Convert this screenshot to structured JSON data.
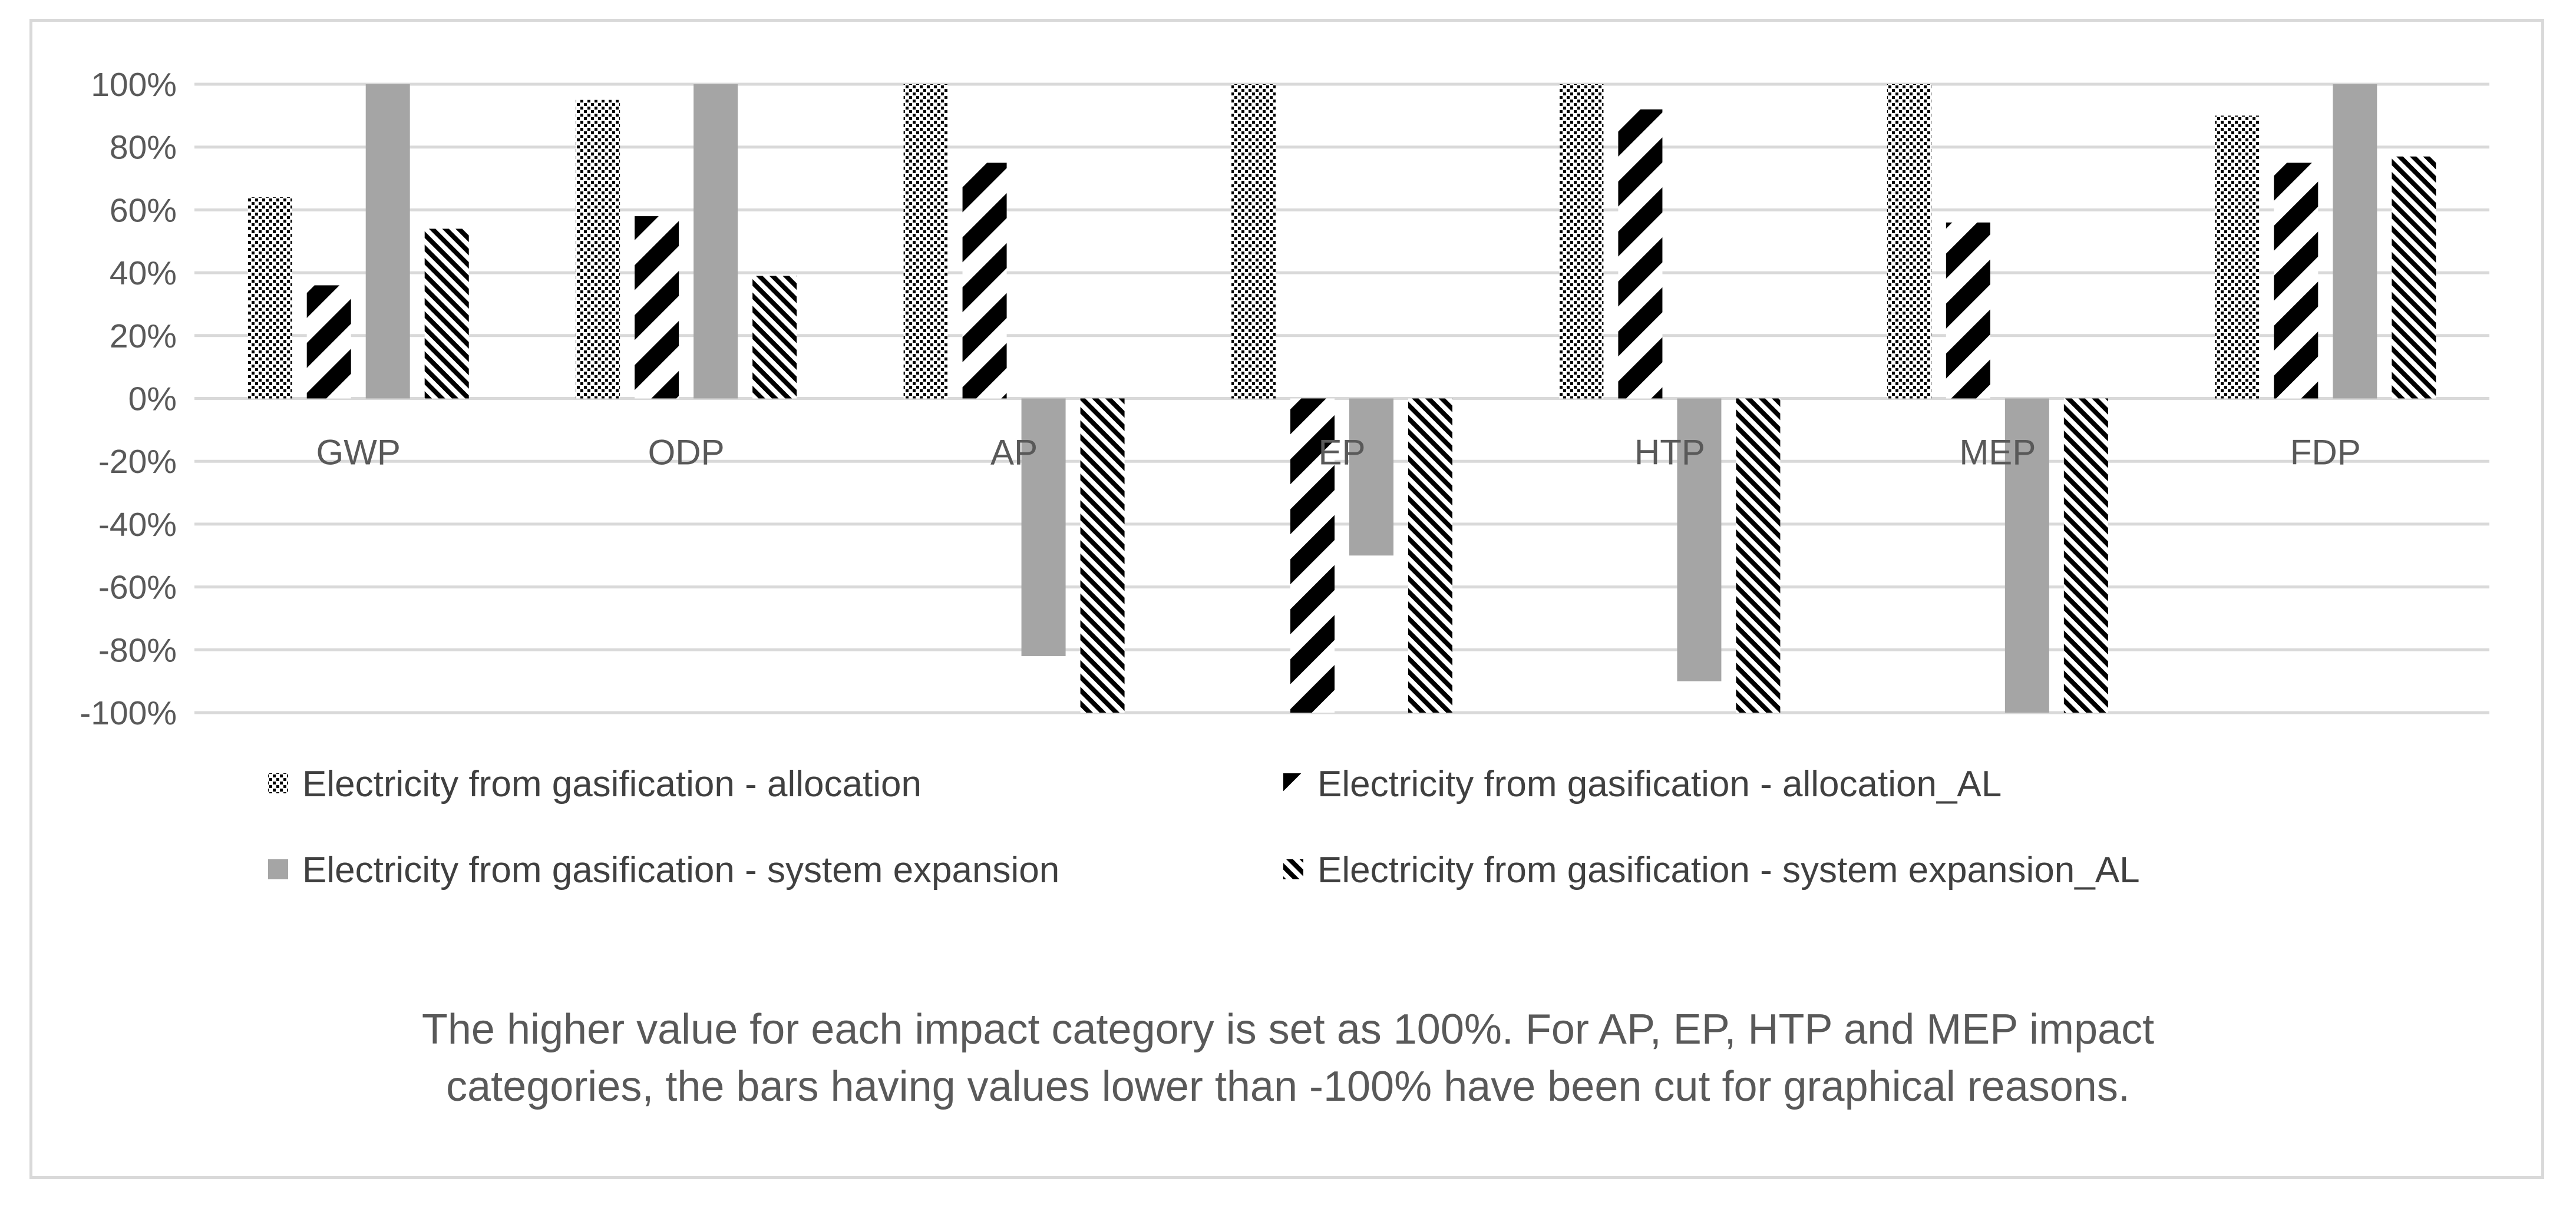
{
  "chart_data": {
    "type": "bar",
    "title": "",
    "xlabel": "",
    "ylabel": "",
    "ylim": [
      -100,
      100
    ],
    "yticks": [
      "100%",
      "80%",
      "60%",
      "40%",
      "20%",
      "0%",
      "-20%",
      "-40%",
      "-60%",
      "-80%",
      "-100%"
    ],
    "categories": [
      "GWP",
      "ODP",
      "AP",
      "EP",
      "HTP",
      "MEP",
      "FDP"
    ],
    "series": [
      {
        "name": "Electricity from gasification - allocation",
        "pattern": "dots",
        "values": [
          64,
          95,
          100,
          100,
          100,
          100,
          90
        ]
      },
      {
        "name": "Electricity from gasification - allocation_AL",
        "pattern": "wide-diagonal",
        "values": [
          36,
          58,
          75,
          -100,
          92,
          56,
          75
        ]
      },
      {
        "name": "Electricity from gasification - system expansion",
        "pattern": "solid",
        "values": [
          100,
          100,
          -82,
          -50,
          -90,
          -100,
          100
        ]
      },
      {
        "name": "Electricity from gasification - system expansion_AL",
        "pattern": "thin-diagonal",
        "values": [
          54,
          39,
          -100,
          -100,
          -100,
          -100,
          77
        ]
      }
    ],
    "legend_position": "bottom",
    "grid": true
  },
  "caption": {
    "line1": "The higher value for each impact category is set as 100%. For AP, EP, HTP and MEP impact",
    "line2": "categories, the bars having values lower than -100% have been cut for graphical reasons."
  },
  "colors": {
    "bar_solid": "#a5a5a5",
    "pattern": "#000000",
    "grid": "#d9d9d9",
    "text": "#595959"
  }
}
